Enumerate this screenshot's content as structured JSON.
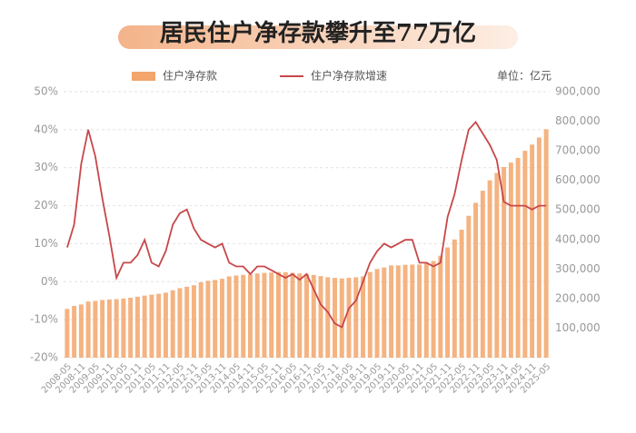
{
  "chart_data": {
    "type": "combo",
    "title": "居民住户净存款攀升至77万亿",
    "unit": "单位：亿元",
    "categories": [
      "2008-05",
      null,
      "2008-11",
      null,
      "2009-05",
      null,
      "2009-11",
      null,
      "2010-05",
      null,
      "2010-11",
      null,
      "2011-05",
      null,
      "2011-11",
      null,
      "2012-05",
      null,
      "2012-11",
      null,
      "2013-05",
      null,
      "2013-11",
      null,
      "2014-05",
      null,
      "2014-11",
      null,
      "2015-05",
      null,
      "2015-11",
      null,
      "2016-05",
      null,
      "2016-11",
      null,
      "2017-05",
      null,
      "2017-11",
      null,
      "2018-05",
      null,
      "2018-11",
      null,
      "2019-05",
      null,
      "2019-11",
      null,
      "2020-05",
      null,
      "2020-11",
      null,
      "2021-05",
      null,
      "2021-11",
      null,
      "2022-05",
      null,
      "2022-11",
      null,
      "2023-05",
      null,
      "2023-11",
      null,
      "2024-05",
      null,
      "2024-11",
      null,
      "2025-05"
    ],
    "series": [
      {
        "name": "住户净存款",
        "type": "bar",
        "axis": "y2",
        "color": "#f2a66b",
        "values": [
          165000,
          175000,
          180000,
          190000,
          192000,
          195000,
          197000,
          198000,
          200000,
          203000,
          206000,
          210000,
          213000,
          216000,
          220000,
          228000,
          235000,
          240000,
          245000,
          255000,
          260000,
          263000,
          267000,
          275000,
          278000,
          280000,
          282000,
          285000,
          287000,
          288000,
          290000,
          289000,
          287000,
          285000,
          283000,
          280000,
          276000,
          272000,
          270000,
          268000,
          270000,
          272000,
          275000,
          290000,
          300000,
          305000,
          312000,
          312000,
          314000,
          315000,
          315000,
          320000,
          327000,
          345000,
          373000,
          400000,
          433000,
          480000,
          524000,
          565000,
          600000,
          625000,
          645000,
          660000,
          676000,
          700000,
          721000,
          745000,
          773000
        ]
      },
      {
        "name": "住户净存款增速",
        "type": "line",
        "color": "#c8474a",
        "values": [
          9,
          15,
          31,
          40,
          33,
          22,
          12,
          1,
          5,
          5,
          7,
          11,
          5,
          4,
          8,
          15,
          18,
          19,
          14,
          11,
          10,
          9,
          10,
          5,
          4,
          4,
          2,
          4,
          4,
          3,
          2,
          1,
          2,
          0.5,
          2,
          -2,
          -6,
          -8,
          -11,
          -12,
          -7,
          -5,
          0,
          5,
          8,
          10,
          9,
          10,
          11,
          11,
          5,
          5,
          4,
          5,
          17,
          23,
          32,
          40,
          42,
          39,
          36,
          32,
          21,
          20,
          20,
          20,
          19,
          20,
          20
        ]
      }
    ],
    "ylim": [
      -20,
      50
    ],
    "yticks": [
      {
        "value": -20,
        "label": "-20%"
      },
      {
        "value": -10,
        "label": "-10%"
      },
      {
        "value": 0,
        "label": "0%"
      },
      {
        "value": 10,
        "label": "10%"
      },
      {
        "value": 20,
        "label": "20%"
      },
      {
        "value": 30,
        "label": "30%"
      },
      {
        "value": 40,
        "label": "40%"
      },
      {
        "value": 50,
        "label": "50%"
      }
    ],
    "y2lim": [
      0,
      900000
    ],
    "y2ticks": [
      {
        "value": 100000,
        "label": "100,000"
      },
      {
        "value": 200000,
        "label": "200,000"
      },
      {
        "value": 300000,
        "label": "300,000"
      },
      {
        "value": 400000,
        "label": "400,000"
      },
      {
        "value": 500000,
        "label": "500,000"
      },
      {
        "value": 600000,
        "label": "600,000"
      },
      {
        "value": 700000,
        "label": "700,000"
      },
      {
        "value": 800000,
        "label": "800,000"
      },
      {
        "value": 900000,
        "label": "900,000"
      }
    ],
    "grid": true
  }
}
